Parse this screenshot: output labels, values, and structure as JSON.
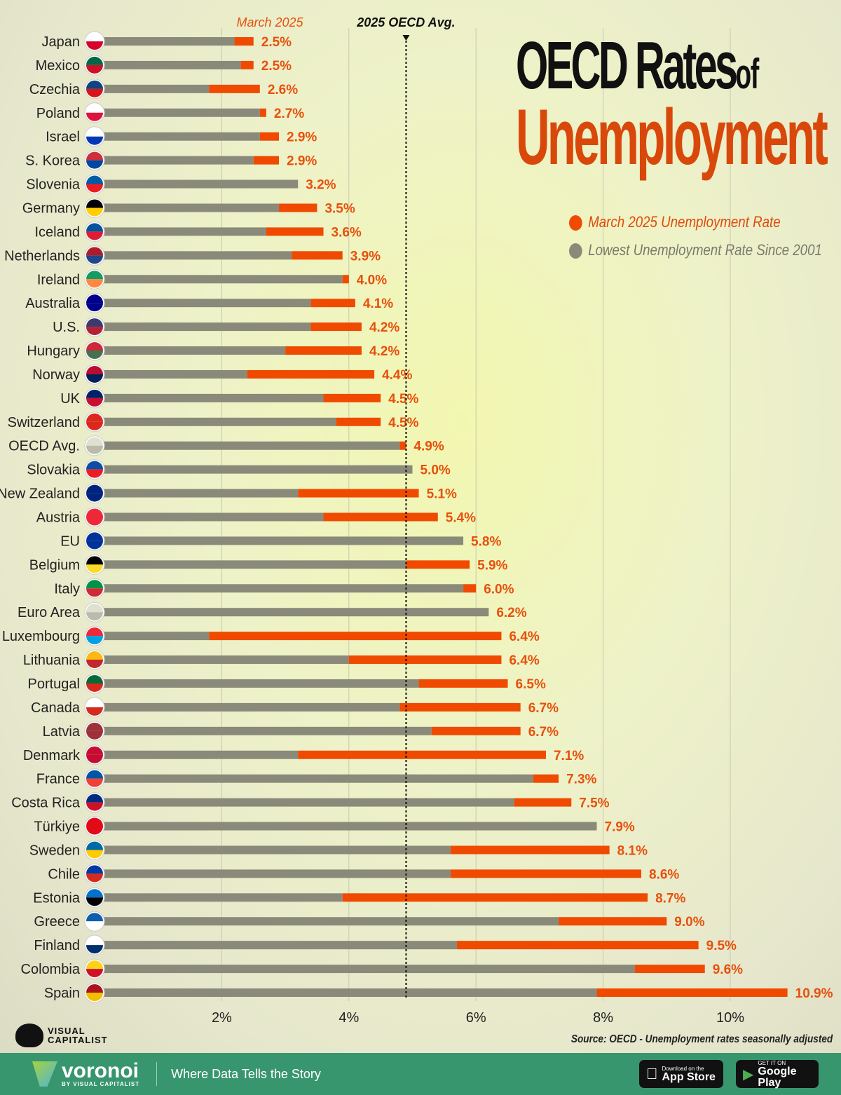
{
  "chart_data": {
    "type": "bar",
    "title": "OECD Rates of Unemployment",
    "title_parts": {
      "main": "OECD Rates",
      "of": "of",
      "sub": "Unemployment"
    },
    "series": [
      {
        "name": "March 2025 Unemployment Rate",
        "color": "#f04a00"
      },
      {
        "name": "Lowest Unemployment Rate Since 2001",
        "color": "#8a8a7a"
      }
    ],
    "top_label": "March 2025",
    "reference_line": {
      "label": "2025 OECD Avg.",
      "value": 4.9
    },
    "xlim": [
      0,
      11.5
    ],
    "xticks": [
      {
        "v": 2,
        "label": "2%"
      },
      {
        "v": 4,
        "label": "4%"
      },
      {
        "v": 6,
        "label": "6%"
      },
      {
        "v": 8,
        "label": "8%"
      },
      {
        "v": 10,
        "label": "10%"
      }
    ],
    "grid": true,
    "legend": "top-right",
    "rows": [
      {
        "country": "Japan",
        "march2025": 2.5,
        "lowest": 2.2,
        "label": "2.5%",
        "flag": [
          "#ffffff",
          "#d6002a"
        ]
      },
      {
        "country": "Mexico",
        "march2025": 2.5,
        "lowest": 2.3,
        "label": "2.5%",
        "flag": [
          "#006847",
          "#ce1126"
        ]
      },
      {
        "country": "Czechia",
        "march2025": 2.6,
        "lowest": 1.8,
        "label": "2.6%",
        "flag": [
          "#11457e",
          "#d7141a"
        ]
      },
      {
        "country": "Poland",
        "march2025": 2.7,
        "lowest": 2.6,
        "label": "2.7%",
        "flag": [
          "#ffffff",
          "#dc143c"
        ]
      },
      {
        "country": "Israel",
        "march2025": 2.9,
        "lowest": 2.6,
        "label": "2.9%",
        "flag": [
          "#ffffff",
          "#0038b8"
        ]
      },
      {
        "country": "S. Korea",
        "march2025": 2.9,
        "lowest": 2.5,
        "label": "2.9%",
        "flag": [
          "#cd2e3a",
          "#0047a0"
        ]
      },
      {
        "country": "Slovenia",
        "march2025": 3.2,
        "lowest": 3.2,
        "label": "3.2%",
        "flag": [
          "#005da4",
          "#ed1c24"
        ]
      },
      {
        "country": "Germany",
        "march2025": 3.5,
        "lowest": 2.9,
        "label": "3.5%",
        "flag": [
          "#000000",
          "#ffce00"
        ]
      },
      {
        "country": "Iceland",
        "march2025": 3.6,
        "lowest": 2.7,
        "label": "3.6%",
        "flag": [
          "#02529c",
          "#dc1e35"
        ]
      },
      {
        "country": "Netherlands",
        "march2025": 3.9,
        "lowest": 3.1,
        "label": "3.9%",
        "flag": [
          "#ae1c28",
          "#21468b"
        ]
      },
      {
        "country": "Ireland",
        "march2025": 4.0,
        "lowest": 3.9,
        "label": "4.0%",
        "flag": [
          "#169b62",
          "#ff883e"
        ]
      },
      {
        "country": "Australia",
        "march2025": 4.1,
        "lowest": 3.4,
        "label": "4.1%",
        "flag": [
          "#00008b",
          "#00008b"
        ]
      },
      {
        "country": "U.S.",
        "march2025": 4.2,
        "lowest": 3.4,
        "label": "4.2%",
        "flag": [
          "#3c3b6e",
          "#b22234"
        ]
      },
      {
        "country": "Hungary",
        "march2025": 4.2,
        "lowest": 3.0,
        "label": "4.2%",
        "flag": [
          "#ce2939",
          "#477050"
        ]
      },
      {
        "country": "Norway",
        "march2025": 4.4,
        "lowest": 2.4,
        "label": "4.4%",
        "flag": [
          "#ba0c2f",
          "#00205b"
        ]
      },
      {
        "country": "UK",
        "march2025": 4.5,
        "lowest": 3.6,
        "label": "4.5%",
        "flag": [
          "#012169",
          "#c8102e"
        ]
      },
      {
        "country": "Switzerland",
        "march2025": 4.5,
        "lowest": 3.8,
        "label": "4.5%",
        "flag": [
          "#da291c",
          "#da291c"
        ]
      },
      {
        "country": "OECD Avg.",
        "march2025": 4.9,
        "lowest": 4.8,
        "label": "4.9%",
        "flag": [
          "#e0e0d0",
          "#bbbbaa"
        ]
      },
      {
        "country": "Slovakia",
        "march2025": 5.0,
        "lowest": 5.0,
        "label": "5.0%",
        "flag": [
          "#0b4ea2",
          "#ee1c25"
        ]
      },
      {
        "country": "New Zealand",
        "march2025": 5.1,
        "lowest": 3.2,
        "label": "5.1%",
        "flag": [
          "#00247d",
          "#00247d"
        ]
      },
      {
        "country": "Austria",
        "march2025": 5.4,
        "lowest": 3.6,
        "label": "5.4%",
        "flag": [
          "#ed2939",
          "#ed2939"
        ]
      },
      {
        "country": "EU",
        "march2025": 5.8,
        "lowest": 5.8,
        "label": "5.8%",
        "flag": [
          "#003399",
          "#003399"
        ]
      },
      {
        "country": "Belgium",
        "march2025": 5.9,
        "lowest": 4.9,
        "label": "5.9%",
        "flag": [
          "#000000",
          "#fdda24"
        ]
      },
      {
        "country": "Italy",
        "march2025": 6.0,
        "lowest": 5.8,
        "label": "6.0%",
        "flag": [
          "#009246",
          "#ce2b37"
        ]
      },
      {
        "country": "Euro Area",
        "march2025": 6.2,
        "lowest": 6.2,
        "label": "6.2%",
        "flag": [
          "#e0e0d0",
          "#bbbbaa"
        ]
      },
      {
        "country": "Luxembourg",
        "march2025": 6.4,
        "lowest": 1.8,
        "label": "6.4%",
        "flag": [
          "#ed2939",
          "#00a1de"
        ]
      },
      {
        "country": "Lithuania",
        "march2025": 6.4,
        "lowest": 4.0,
        "label": "6.4%",
        "flag": [
          "#fdb913",
          "#c1272d"
        ]
      },
      {
        "country": "Portugal",
        "march2025": 6.5,
        "lowest": 5.1,
        "label": "6.5%",
        "flag": [
          "#046a38",
          "#da291c"
        ]
      },
      {
        "country": "Canada",
        "march2025": 6.7,
        "lowest": 4.8,
        "label": "6.7%",
        "flag": [
          "#ffffff",
          "#d52b1e"
        ]
      },
      {
        "country": "Latvia",
        "march2025": 6.7,
        "lowest": 5.3,
        "label": "6.7%",
        "flag": [
          "#9e3039",
          "#9e3039"
        ]
      },
      {
        "country": "Denmark",
        "march2025": 7.1,
        "lowest": 3.2,
        "label": "7.1%",
        "flag": [
          "#c60c30",
          "#c60c30"
        ]
      },
      {
        "country": "France",
        "march2025": 7.3,
        "lowest": 6.9,
        "label": "7.3%",
        "flag": [
          "#0055a4",
          "#ef4135"
        ]
      },
      {
        "country": "Costa Rica",
        "march2025": 7.5,
        "lowest": 6.6,
        "label": "7.5%",
        "flag": [
          "#002b7f",
          "#ce1126"
        ]
      },
      {
        "country": "Türkiye",
        "march2025": 7.9,
        "lowest": 7.9,
        "label": "7.9%",
        "flag": [
          "#e30a17",
          "#e30a17"
        ]
      },
      {
        "country": "Sweden",
        "march2025": 8.1,
        "lowest": 5.6,
        "label": "8.1%",
        "flag": [
          "#006aa7",
          "#fecc00"
        ]
      },
      {
        "country": "Chile",
        "march2025": 8.6,
        "lowest": 5.6,
        "label": "8.6%",
        "flag": [
          "#0039a6",
          "#d52b1e"
        ]
      },
      {
        "country": "Estonia",
        "march2025": 8.7,
        "lowest": 3.9,
        "label": "8.7%",
        "flag": [
          "#0072ce",
          "#000000"
        ]
      },
      {
        "country": "Greece",
        "march2025": 9.0,
        "lowest": 7.3,
        "label": "9.0%",
        "flag": [
          "#0d5eaf",
          "#ffffff"
        ]
      },
      {
        "country": "Finland",
        "march2025": 9.5,
        "lowest": 5.7,
        "label": "9.5%",
        "flag": [
          "#ffffff",
          "#002f6c"
        ]
      },
      {
        "country": "Colombia",
        "march2025": 9.6,
        "lowest": 8.5,
        "label": "9.6%",
        "flag": [
          "#fcd116",
          "#ce1126"
        ]
      },
      {
        "country": "Spain",
        "march2025": 10.9,
        "lowest": 7.9,
        "label": "10.9%",
        "flag": [
          "#aa151b",
          "#f1bf00"
        ]
      }
    ]
  },
  "source": "Source: OECD - Unemployment rates seasonally adjusted",
  "brand": {
    "logo": "VISUAL CAPITALIST",
    "logo_line1": "VISUAL",
    "logo_line2": "CAPITALIST"
  },
  "footer": {
    "brand": "voronoi",
    "by": "BY VISUAL CAPITALIST",
    "tagline": "Where Data Tells the Story",
    "app_store_small": "Download on the",
    "app_store": "App Store",
    "google_small": "GET IT ON",
    "google": "Google Play"
  }
}
